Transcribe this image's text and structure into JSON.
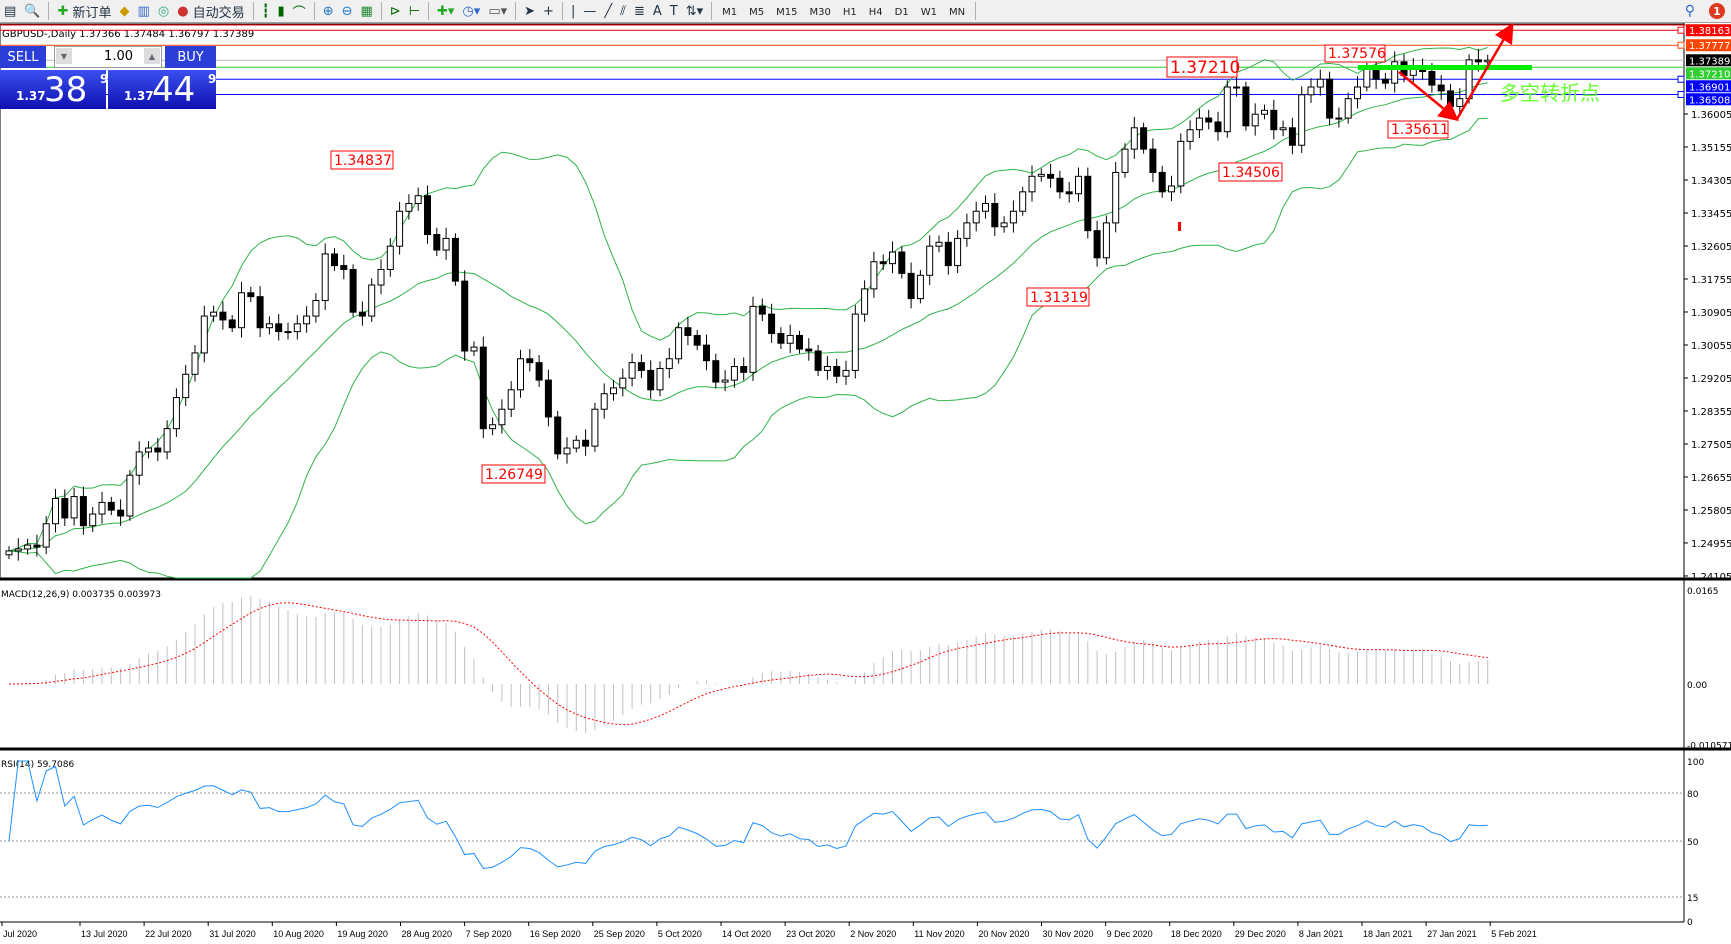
{
  "toolbar": {
    "new_order": "新订单",
    "auto_trading": "自动交易",
    "timeframes": [
      "M1",
      "M5",
      "M15",
      "M30",
      "H1",
      "H4",
      "D1",
      "W1",
      "MN"
    ],
    "notification_count": "1"
  },
  "chart": {
    "header": "GBPUSD-,Daily  1.37366 1.37484 1.36797 1.37389",
    "symbol": "GBPUSD-",
    "period": "Daily"
  },
  "trade_panel": {
    "sell_label": "SELL",
    "buy_label": "BUY",
    "lot": "1.00",
    "sell_price": {
      "prefix": "1.37",
      "big": "38",
      "sup": "9"
    },
    "buy_price": {
      "prefix": "1.37",
      "big": "44",
      "sup": "9"
    }
  },
  "chart_data": {
    "type": "candlestick",
    "price_axis_ticks": [
      "1.36005",
      "1.35155",
      "1.34305",
      "1.33455",
      "1.32605",
      "1.31755",
      "1.30905",
      "1.30055",
      "1.29205",
      "1.28355",
      "1.27505",
      "1.26655",
      "1.25805",
      "1.24955",
      "1.24105"
    ],
    "ylim": [
      1.24105,
      1.38163
    ],
    "date_labels": [
      "Jul 2020",
      "13 Jul 2020",
      "22 Jul 2020",
      "31 Jul 2020",
      "10 Aug 2020",
      "19 Aug 2020",
      "28 Aug 2020",
      "7 Sep 2020",
      "16 Sep 2020",
      "25 Sep 2020",
      "5 Oct 2020",
      "14 Oct 2020",
      "23 Oct 2020",
      "2 Nov 2020",
      "11 Nov 2020",
      "20 Nov 2020",
      "30 Nov 2020",
      "9 Dec 2020",
      "18 Dec 2020",
      "29 Dec 2020",
      "8 Jan 2021",
      "18 Jan 2021",
      "27 Jan 2021",
      "5 Feb 2021"
    ],
    "closes": [
      1.2475,
      1.248,
      1.249,
      1.2485,
      1.2545,
      1.261,
      1.256,
      1.2615,
      1.254,
      1.257,
      1.26,
      1.258,
      1.2565,
      1.267,
      1.273,
      1.274,
      1.273,
      1.279,
      1.287,
      1.293,
      1.2985,
      1.308,
      1.309,
      1.307,
      1.305,
      1.314,
      1.313,
      1.305,
      1.306,
      1.304,
      1.304,
      1.306,
      1.308,
      1.312,
      1.324,
      1.321,
      1.32,
      1.309,
      1.308,
      1.316,
      1.32,
      1.326,
      1.335,
      1.337,
      1.339,
      1.329,
      1.325,
      1.328,
      1.317,
      1.299,
      1.3,
      1.279,
      1.28,
      1.284,
      1.289,
      1.297,
      1.296,
      1.2915,
      1.282,
      1.2725,
      1.274,
      1.276,
      1.2745,
      1.284,
      1.288,
      1.2895,
      1.292,
      1.296,
      1.294,
      1.289,
      1.2945,
      1.297,
      1.305,
      1.303,
      1.3005,
      1.2965,
      1.291,
      1.2915,
      1.295,
      1.2935,
      1.3105,
      1.3085,
      1.3035,
      1.301,
      1.303,
      1.2995,
      1.299,
      1.294,
      1.295,
      1.2925,
      1.294,
      1.3085,
      1.315,
      1.322,
      1.3215,
      1.3245,
      1.319,
      1.3125,
      1.3185,
      1.326,
      1.327,
      1.321,
      1.328,
      1.332,
      1.335,
      1.337,
      1.331,
      1.332,
      1.335,
      1.34,
      1.344,
      1.3445,
      1.3435,
      1.34,
      1.3395,
      1.344,
      1.33,
      1.323,
      1.332,
      1.345,
      1.351,
      1.3565,
      1.351,
      1.345,
      1.34,
      1.3415,
      1.353,
      1.356,
      1.359,
      1.358,
      1.3555,
      1.367,
      1.367,
      1.357,
      1.36,
      1.361,
      1.356,
      1.3565,
      1.352,
      1.365,
      1.367,
      1.369,
      1.359,
      1.359,
      1.364,
      1.367,
      1.372,
      1.369,
      1.368,
      1.3735,
      1.37,
      1.372,
      1.371,
      1.3675,
      1.366,
      1.362,
      1.364,
      1.374,
      1.3735,
      1.3739
    ],
    "horizontal_lines": [
      {
        "price": "1.38163",
        "color": "#ff0000"
      },
      {
        "price": "1.37777",
        "color": "#ff4500"
      },
      {
        "price": "1.37389",
        "color": "#000000"
      },
      {
        "price": "1.37210",
        "color": "#32cd32"
      },
      {
        "price": "1.36901",
        "color": "#0000ff"
      },
      {
        "price": "1.36508",
        "color": "#0000ff"
      }
    ],
    "annotations": [
      {
        "text": "1.37210",
        "price": 1.3721
      },
      {
        "text": "1.37576",
        "price": 1.37576
      },
      {
        "text": "1.34837",
        "price": 1.34837
      },
      {
        "text": "1.26749",
        "price": 1.26749
      },
      {
        "text": "1.34506",
        "price": 1.34506
      },
      {
        "text": "1.31319",
        "price": 1.31319
      },
      {
        "text": "1.35611",
        "price": 1.35611
      }
    ],
    "note_text": "多空转折点",
    "colors": {
      "bands": "#2fb34a",
      "annotation": "#ff0000",
      "note": "#66ff33",
      "rsi": "#1e90ff",
      "macd_signal": "#ff0000",
      "macd_hist": "#c0c0c0"
    },
    "indicators": {
      "macd": {
        "label": "MACD(12,26,9) 0.003735 0.003973",
        "ticks": [
          "0.0165",
          "0.00",
          "-0.010571"
        ],
        "ylim": [
          -0.010571,
          0.0165
        ]
      },
      "rsi": {
        "label": "RSI(14) 59.7086",
        "ticks": [
          "100",
          "80",
          "50",
          "15",
          "0"
        ],
        "levels": [
          80,
          50,
          15
        ],
        "ylim": [
          0,
          100
        ]
      }
    }
  }
}
